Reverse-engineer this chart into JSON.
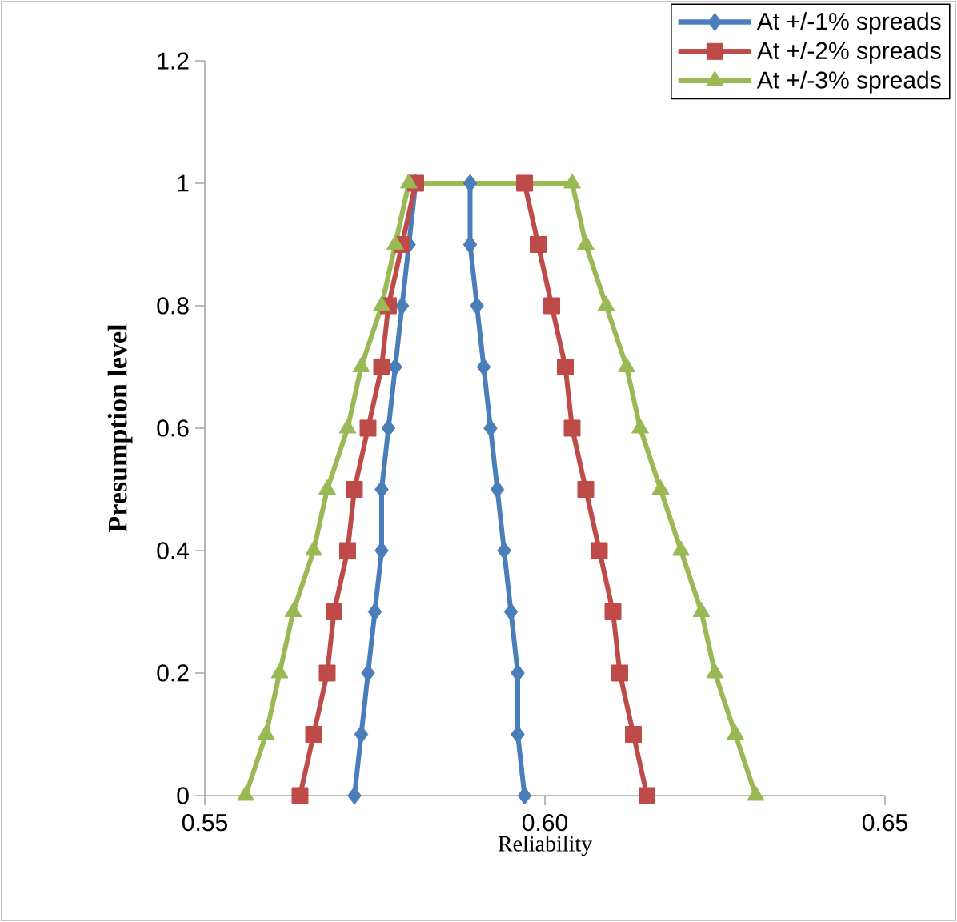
{
  "chart_data": {
    "type": "line",
    "xlabel": "Reliability",
    "ylabel": "Presumption level",
    "xlim": [
      0.55,
      0.65
    ],
    "xticks": [
      0.55,
      {
        "value": 0.6,
        "label": "0.60"
      },
      0.65
    ],
    "ylim": [
      0,
      1.2
    ],
    "yticks": [
      0,
      0.2,
      0.4,
      0.6,
      0.8,
      1,
      1.2
    ],
    "legend": "top right",
    "grid": false,
    "line_style": "solid",
    "series": [
      {
        "name": "At +/-1% spreads",
        "color": "#4a7ebb",
        "marker": "diamond",
        "x": [
          0.572,
          0.573,
          0.574,
          0.575,
          0.576,
          0.576,
          0.577,
          0.578,
          0.579,
          0.58,
          0.581,
          0.589,
          0.589,
          0.59,
          0.591,
          0.592,
          0.593,
          0.594,
          0.595,
          0.596,
          0.596,
          0.597
        ],
        "values": [
          0,
          0.1,
          0.2,
          0.3,
          0.4,
          0.5,
          0.6,
          0.7,
          0.8,
          0.9,
          1,
          1,
          0.9,
          0.8,
          0.7,
          0.6,
          0.5,
          0.4,
          0.3,
          0.2,
          0.1,
          0
        ]
      },
      {
        "name": "At +/-2% spreads",
        "color": "#be4b48",
        "marker": "square",
        "x": [
          0.564,
          0.566,
          0.568,
          0.569,
          0.571,
          0.572,
          0.574,
          0.576,
          0.577,
          0.579,
          0.581,
          0.597,
          0.599,
          0.601,
          0.603,
          0.604,
          0.606,
          0.608,
          0.61,
          0.611,
          0.613,
          0.615
        ],
        "values": [
          0,
          0.1,
          0.2,
          0.3,
          0.4,
          0.5,
          0.6,
          0.7,
          0.8,
          0.9,
          1,
          1,
          0.9,
          0.8,
          0.7,
          0.6,
          0.5,
          0.4,
          0.3,
          0.2,
          0.1,
          0
        ]
      },
      {
        "name": "At +/-3% spreads",
        "color": "#98b954",
        "marker": "triangle",
        "x": [
          0.556,
          0.559,
          0.561,
          0.563,
          0.566,
          0.568,
          0.571,
          0.573,
          0.576,
          0.578,
          0.58,
          0.604,
          0.606,
          0.609,
          0.612,
          0.614,
          0.617,
          0.62,
          0.623,
          0.625,
          0.628,
          0.631
        ],
        "values": [
          0,
          0.1,
          0.2,
          0.3,
          0.4,
          0.5,
          0.6,
          0.7,
          0.8,
          0.9,
          1,
          1,
          0.9,
          0.8,
          0.7,
          0.6,
          0.5,
          0.4,
          0.3,
          0.2,
          0.1,
          0
        ]
      }
    ]
  }
}
